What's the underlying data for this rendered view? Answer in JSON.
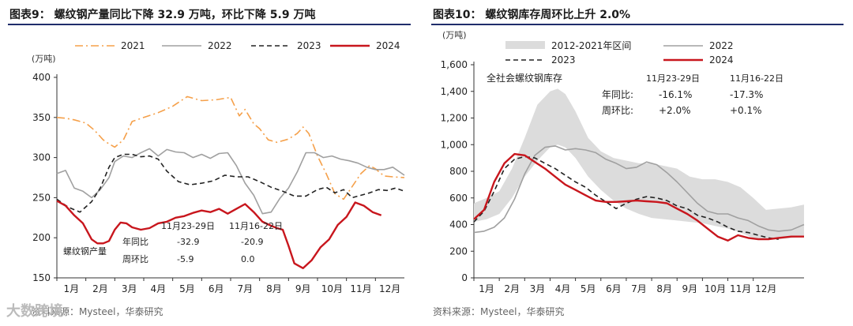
{
  "charts": [
    {
      "title": "图表9：  螺纹钢产量同比下降 32.9 万吨，环比下降 5.9 万吨",
      "footer": "资料来源：Mysteel，华泰研究",
      "y_unit": "(万吨)",
      "annotation_label": "螺纹钢产量"
    },
    {
      "title": "图表10：  螺纹钢库存周环比上升 2.0%",
      "footer": "资料来源：Mysteel，华泰研究",
      "y_unit": "(万吨)",
      "annotation_label": "全社会螺纹钢库存"
    }
  ],
  "watermark": "大数跨境",
  "colors": {
    "c2021": "#f5a04a",
    "c2022": "#a0a0a0",
    "c2023": "#222222",
    "c2024": "#c8161d",
    "band": "#dcdcdc",
    "rule": "#1f2d6b"
  },
  "chart_data": [
    {
      "type": "line",
      "xlabel": "",
      "ylabel": "万吨",
      "ylim": [
        150,
        400
      ],
      "yticks": [
        150,
        200,
        250,
        300,
        350,
        400
      ],
      "xticks": [
        "1月",
        "2月",
        "3月",
        "4月",
        "5月",
        "6月",
        "7月",
        "8月",
        "9月",
        "10月",
        "11月",
        "12月"
      ],
      "series": [
        {
          "name": "2021",
          "style": "dashdot",
          "color_key": "c2021",
          "x": [
            0,
            0.3,
            0.6,
            1,
            1.3,
            1.6,
            1.8,
            2.0,
            2.3,
            2.6,
            3.0,
            3.5,
            4.0,
            4.5,
            5.0,
            5.5,
            6.0,
            6.3,
            6.5,
            6.8,
            7.0,
            7.3,
            7.6,
            8.0,
            8.3,
            8.5,
            8.7,
            9.0,
            9.3,
            9.6,
            9.9,
            10.2,
            10.5,
            10.8,
            11.0,
            11.3,
            11.6,
            12.0
          ],
          "y": [
            350,
            349,
            347,
            343,
            334,
            322,
            317,
            313,
            322,
            345,
            350,
            356,
            364,
            376,
            371,
            372,
            375,
            352,
            360,
            342,
            336,
            322,
            319,
            323,
            330,
            338,
            330,
            302,
            280,
            255,
            248,
            264,
            280,
            290,
            286,
            277,
            276,
            275
          ]
        },
        {
          "name": "2022",
          "style": "solid",
          "color_key": "c2022",
          "x": [
            0,
            0.3,
            0.6,
            0.9,
            1.2,
            1.5,
            1.8,
            2.0,
            2.3,
            2.6,
            2.9,
            3.2,
            3.5,
            3.8,
            4.1,
            4.4,
            4.7,
            5.0,
            5.3,
            5.6,
            5.9,
            6.2,
            6.5,
            6.8,
            7.1,
            7.4,
            7.7,
            8.0,
            8.3,
            8.6,
            8.9,
            9.2,
            9.5,
            9.8,
            10.1,
            10.4,
            10.7,
            11.0,
            11.3,
            11.6,
            12.0
          ],
          "y": [
            280,
            284,
            262,
            258,
            250,
            260,
            275,
            295,
            302,
            300,
            306,
            311,
            302,
            310,
            307,
            306,
            300,
            304,
            299,
            305,
            306,
            290,
            268,
            253,
            230,
            232,
            249,
            262,
            282,
            306,
            306,
            300,
            302,
            298,
            296,
            293,
            288,
            285,
            285,
            288,
            278
          ]
        },
        {
          "name": "2023",
          "style": "dash",
          "color_key": "c2023",
          "x": [
            0,
            0.4,
            0.8,
            1.2,
            1.5,
            1.8,
            2.0,
            2.3,
            2.6,
            2.9,
            3.2,
            3.5,
            3.8,
            4.2,
            4.6,
            5.0,
            5.4,
            5.8,
            6.2,
            6.6,
            7.0,
            7.4,
            7.8,
            8.2,
            8.6,
            9.0,
            9.3,
            9.6,
            9.9,
            10.2,
            10.5,
            10.8,
            11.1,
            11.4,
            11.7,
            12.0
          ],
          "y": [
            248,
            238,
            232,
            245,
            262,
            288,
            300,
            304,
            304,
            301,
            302,
            298,
            283,
            270,
            266,
            268,
            271,
            278,
            276,
            276,
            270,
            263,
            258,
            252,
            252,
            260,
            263,
            256,
            260,
            250,
            253,
            256,
            260,
            259,
            262,
            258
          ]
        },
        {
          "name": "2024",
          "style": "solid",
          "color_key": "c2024",
          "x": [
            0,
            0.3,
            0.6,
            0.9,
            1.2,
            1.4,
            1.6,
            1.8,
            2.0,
            2.2,
            2.4,
            2.6,
            2.9,
            3.2,
            3.5,
            3.8,
            4.1,
            4.4,
            4.7,
            5.0,
            5.3,
            5.6,
            5.9,
            6.2,
            6.5,
            6.8,
            7.1,
            7.4,
            7.6,
            7.8,
            8.0,
            8.2,
            8.5,
            8.8,
            9.1,
            9.4,
            9.7,
            10.0,
            10.3,
            10.6,
            10.9,
            11.2
          ],
          "y": [
            246,
            240,
            228,
            218,
            198,
            193,
            193,
            196,
            210,
            219,
            218,
            213,
            210,
            212,
            218,
            220,
            225,
            227,
            231,
            234,
            232,
            236,
            230,
            236,
            242,
            232,
            220,
            215,
            212,
            210,
            190,
            168,
            162,
            172,
            188,
            198,
            216,
            226,
            244,
            240,
            232,
            228
          ]
        }
      ],
      "annotations": {
        "header_a": "11月23-29日",
        "header_b": "11月16-22日",
        "rows": [
          {
            "label": "年同比",
            "a": "-32.9",
            "b": "-20.9"
          },
          {
            "label": "周环比",
            "a": "-5.9",
            "b": "0.0"
          }
        ]
      },
      "legend": [
        "2021",
        "2022",
        "2023",
        "2024"
      ]
    },
    {
      "type": "line",
      "xlabel": "",
      "ylabel": "万吨",
      "ylim": [
        0,
        1600
      ],
      "yticks": [
        0,
        200,
        400,
        600,
        800,
        1000,
        1200,
        1400,
        1600
      ],
      "xticks": [
        "1月",
        "2月",
        "3月",
        "4月",
        "5月",
        "6月",
        "7月",
        "8月",
        "9月",
        "10月",
        "11月",
        "12月"
      ],
      "band": {
        "name": "2012-2021年区间",
        "x": [
          0,
          0.5,
          1.0,
          1.5,
          2.0,
          2.5,
          3.0,
          3.3,
          3.6,
          4.0,
          4.5,
          5.0,
          5.5,
          6.0,
          6.5,
          7.0,
          7.5,
          8.0,
          8.5,
          9.0,
          9.5,
          10.0,
          10.5,
          11.0,
          11.5,
          12.0,
          12.5,
          13.0
        ],
        "low": [
          420,
          440,
          480,
          600,
          760,
          880,
          980,
          1000,
          980,
          900,
          760,
          660,
          580,
          520,
          480,
          450,
          440,
          430,
          420,
          410,
          390,
          370,
          340,
          300,
          290,
          290,
          300,
          310
        ],
        "high": [
          560,
          600,
          650,
          820,
          1050,
          1300,
          1400,
          1420,
          1380,
          1250,
          1050,
          950,
          900,
          880,
          860,
          860,
          840,
          820,
          760,
          740,
          740,
          720,
          680,
          600,
          510,
          520,
          530,
          550
        ]
      },
      "series": [
        {
          "name": "2022",
          "style": "solid",
          "color_key": "c2022",
          "x": [
            0,
            0.4,
            0.8,
            1.2,
            1.6,
            2.0,
            2.4,
            2.8,
            3.2,
            3.6,
            4.0,
            4.4,
            4.8,
            5.2,
            5.6,
            6.0,
            6.4,
            6.8,
            7.2,
            7.6,
            8.0,
            8.4,
            8.8,
            9.2,
            9.6,
            10.0,
            10.4,
            10.8,
            11.2,
            11.6,
            12.0,
            12.5,
            13.0
          ],
          "y": [
            340,
            350,
            380,
            450,
            590,
            780,
            920,
            980,
            990,
            960,
            970,
            960,
            940,
            890,
            860,
            820,
            830,
            870,
            850,
            790,
            720,
            640,
            560,
            500,
            480,
            480,
            450,
            430,
            390,
            360,
            350,
            360,
            400
          ]
        },
        {
          "name": "2023",
          "style": "dash",
          "color_key": "c2023",
          "x": [
            0,
            0.4,
            0.8,
            1.2,
            1.6,
            2.0,
            2.4,
            2.8,
            3.2,
            3.6,
            4.0,
            4.4,
            4.8,
            5.2,
            5.6,
            6.0,
            6.4,
            6.8,
            7.2,
            7.6,
            8.0,
            8.4,
            8.8,
            9.2,
            9.6,
            10.0,
            10.4,
            10.8,
            11.2,
            11.6,
            12.0
          ],
          "y": [
            420,
            500,
            650,
            820,
            890,
            910,
            900,
            860,
            820,
            770,
            720,
            680,
            620,
            570,
            520,
            560,
            590,
            610,
            600,
            580,
            540,
            520,
            470,
            450,
            420,
            380,
            350,
            340,
            320,
            300,
            290
          ]
        },
        {
          "name": "2024",
          "style": "solid",
          "color_key": "c2024",
          "x": [
            0,
            0.4,
            0.8,
            1.2,
            1.6,
            2.0,
            2.4,
            2.8,
            3.2,
            3.6,
            4.0,
            4.4,
            4.8,
            5.2,
            5.6,
            6.0,
            6.4,
            6.8,
            7.2,
            7.6,
            8.0,
            8.4,
            8.8,
            9.2,
            9.6,
            10.0,
            10.4,
            10.8,
            11.2,
            11.6,
            12.0,
            12.5,
            13.0
          ],
          "y": [
            440,
            510,
            720,
            860,
            930,
            920,
            870,
            820,
            760,
            700,
            660,
            620,
            580,
            570,
            570,
            575,
            580,
            575,
            570,
            560,
            520,
            480,
            430,
            370,
            310,
            280,
            320,
            300,
            290,
            290,
            300,
            310,
            310
          ]
        }
      ],
      "series_truncate": {
        "2022": 33,
        "2023": 31,
        "2024": 29
      },
      "annotations": {
        "header_a": "11月23-29日",
        "header_b": "11月16-22日",
        "rows": [
          {
            "label": "年同比:",
            "a": "-16.1%",
            "b": "-17.3%"
          },
          {
            "label": "周环比:",
            "a": "+2.0%",
            "b": "+0.1%"
          }
        ]
      },
      "legend": [
        "2012-2021年区间",
        "2022",
        "2023",
        "2024"
      ]
    }
  ]
}
